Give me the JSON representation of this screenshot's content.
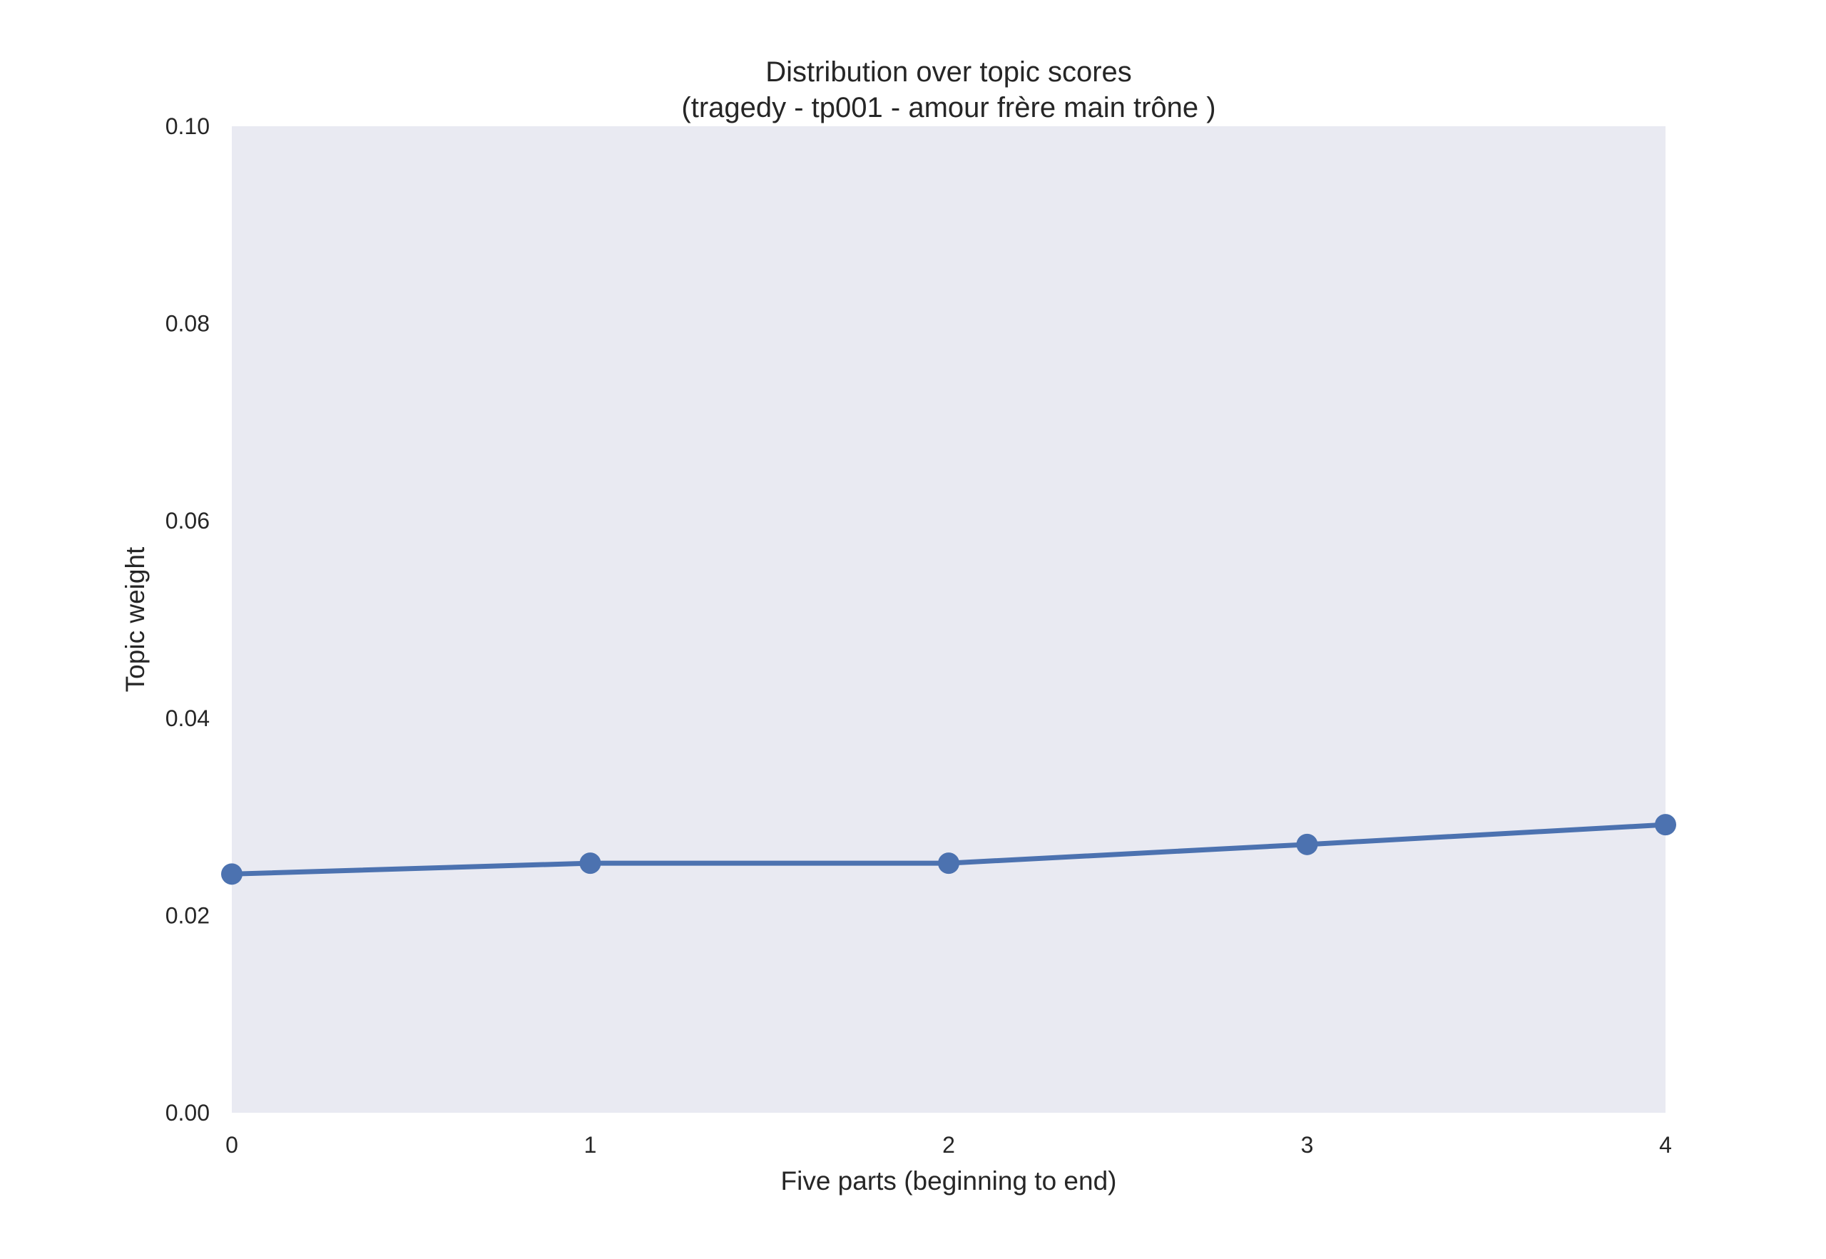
{
  "chart_data": {
    "type": "line",
    "title": "Distribution over topic scores",
    "subtitle": "(tragedy - tp001 - amour frère main trône )",
    "xlabel": "Five parts (beginning to end)",
    "ylabel": "Topic weight",
    "x": [
      0,
      1,
      2,
      3,
      4
    ],
    "x_tick_labels": [
      "0",
      "1",
      "2",
      "3",
      "4"
    ],
    "xlim": [
      0,
      4
    ],
    "ylim": [
      0,
      0.1
    ],
    "y_ticks": [
      0.0,
      0.02,
      0.04,
      0.06,
      0.08,
      0.1
    ],
    "y_tick_labels": [
      "0.00",
      "0.02",
      "0.04",
      "0.06",
      "0.08",
      "0.10"
    ],
    "series": [
      {
        "values": [
          0.0242,
          0.0253,
          0.0253,
          0.0272,
          0.0292
        ]
      }
    ],
    "grid": false,
    "background_color": "#e9eaf2",
    "line_color": "#4c72b0"
  }
}
